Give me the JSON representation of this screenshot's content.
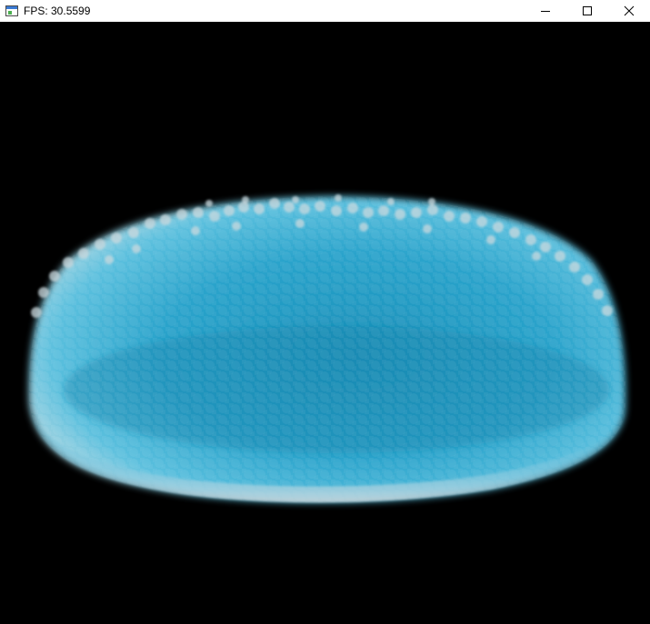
{
  "window": {
    "title": "FPS: 30.5599"
  },
  "icons": {
    "app": "application-window-icon",
    "minimize": "minimize-icon",
    "maximize": "maximize-icon",
    "close": "close-icon"
  },
  "colors": {
    "background": "#000000",
    "titlebar": "#ffffff",
    "fluid_deep": "#1a8fb8",
    "fluid_mid": "#3fb2d6",
    "fluid_edge": "#a9d6e2",
    "foam": "#c9d8de"
  }
}
